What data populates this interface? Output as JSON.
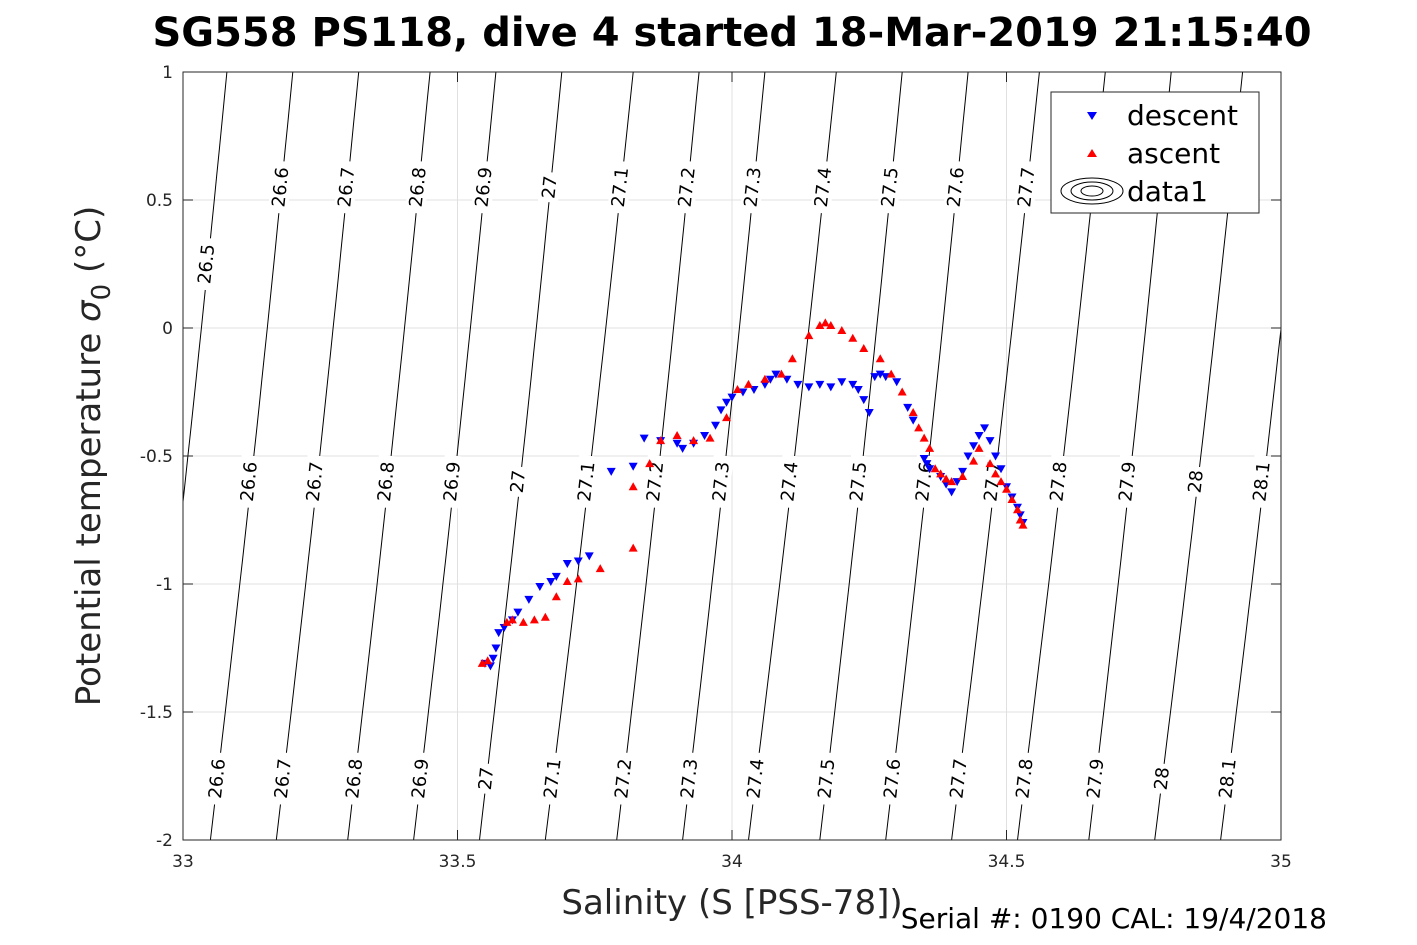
{
  "chart_data": {
    "type": "scatter",
    "title": "SG558 PS118, dive 4 started 18-Mar-2019 21:15:40",
    "xlabel": "Salinity (S [PSS-78])",
    "ylabel_main": "Potential temperature ",
    "ylabel_sigma": "σ",
    "ylabel_sub": "0",
    "ylabel_unit": " (°C)",
    "xlim": [
      33,
      35
    ],
    "ylim": [
      -2,
      1
    ],
    "xticks": [
      33,
      33.5,
      34,
      34.5,
      35
    ],
    "xtick_labels": [
      "33",
      "33.5",
      "34",
      "34.5",
      "35"
    ],
    "yticks": [
      -2,
      -1.5,
      -1,
      -0.5,
      0,
      0.5,
      1
    ],
    "ytick_labels": [
      "-2",
      "-1.5",
      "-1",
      "-0.5",
      "0",
      "0.5",
      "1"
    ],
    "grid": true,
    "legend_position": "top-right",
    "legend": [
      "descent",
      "ascent",
      "data1"
    ],
    "footer": "Serial #: 0190  CAL: 19/4/2018",
    "colors": {
      "descent": "#0000ff",
      "ascent": "#ff0000",
      "contour": "#000000",
      "grid": "#e0e0e0"
    },
    "density_contours": {
      "lines": [
        {
          "value": 26.5,
          "bottom_s": 32.93,
          "top_s": 33.08
        },
        {
          "value": 26.6,
          "bottom_s": 33.05,
          "top_s": 33.2
        },
        {
          "value": 26.7,
          "bottom_s": 33.17,
          "top_s": 33.32
        },
        {
          "value": 26.8,
          "bottom_s": 33.3,
          "top_s": 33.45
        },
        {
          "value": 26.9,
          "bottom_s": 33.42,
          "top_s": 33.57
        },
        {
          "value": 27,
          "bottom_s": 33.54,
          "top_s": 33.69
        },
        {
          "value": 27.1,
          "bottom_s": 33.66,
          "top_s": 33.82
        },
        {
          "value": 27.2,
          "bottom_s": 33.79,
          "top_s": 33.94
        },
        {
          "value": 27.3,
          "bottom_s": 33.91,
          "top_s": 34.06
        },
        {
          "value": 27.4,
          "bottom_s": 34.03,
          "top_s": 34.19
        },
        {
          "value": 27.5,
          "bottom_s": 34.16,
          "top_s": 34.31
        },
        {
          "value": 27.6,
          "bottom_s": 34.28,
          "top_s": 34.43
        },
        {
          "value": 27.7,
          "bottom_s": 34.4,
          "top_s": 34.56
        },
        {
          "value": 27.8,
          "bottom_s": 34.52,
          "top_s": 34.68
        },
        {
          "value": 27.9,
          "bottom_s": 34.65,
          "top_s": 34.8
        },
        {
          "value": 28,
          "bottom_s": 34.77,
          "top_s": 34.93
        },
        {
          "value": 28.1,
          "bottom_s": 34.89,
          "top_s": 35.05
        }
      ],
      "label_rows": [
        {
          "t": 0.55,
          "labels": [
            "26.6",
            "26.7",
            "26.8",
            "26.9",
            "27",
            "27.1",
            "27.2",
            "27.3",
            "27.4",
            "27.5",
            "27.6",
            "27.7"
          ]
        },
        {
          "t": 0.25,
          "labels": [
            "26.5"
          ]
        },
        {
          "t": -0.6,
          "labels": [
            "26.6",
            "26.7",
            "26.8",
            "26.9",
            "27",
            "27.1",
            "27.2",
            "27.3",
            "27.4",
            "27.5",
            "27.6",
            "27.7",
            "27.8",
            "27.9",
            "28",
            "28.1"
          ]
        },
        {
          "t": -1.76,
          "labels": [
            "26.6",
            "26.7",
            "26.8",
            "26.9",
            "27",
            "27.1",
            "27.2",
            "27.3",
            "27.4",
            "27.5",
            "27.6",
            "27.7",
            "27.8",
            "27.9",
            "28",
            "28.1"
          ]
        }
      ]
    },
    "series": [
      {
        "name": "descent",
        "marker": "triangle-down",
        "points": [
          [
            33.55,
            -1.31
          ],
          [
            33.56,
            -1.32
          ],
          [
            33.565,
            -1.29
          ],
          [
            33.57,
            -1.25
          ],
          [
            33.575,
            -1.19
          ],
          [
            33.585,
            -1.17
          ],
          [
            33.6,
            -1.14
          ],
          [
            33.61,
            -1.11
          ],
          [
            33.63,
            -1.06
          ],
          [
            33.65,
            -1.01
          ],
          [
            33.67,
            -0.99
          ],
          [
            33.68,
            -0.97
          ],
          [
            33.7,
            -0.92
          ],
          [
            33.72,
            -0.91
          ],
          [
            33.74,
            -0.89
          ],
          [
            33.78,
            -0.56
          ],
          [
            33.82,
            -0.54
          ],
          [
            33.84,
            -0.43
          ],
          [
            33.87,
            -0.44
          ],
          [
            33.9,
            -0.45
          ],
          [
            33.91,
            -0.47
          ],
          [
            33.93,
            -0.45
          ],
          [
            33.95,
            -0.42
          ],
          [
            33.97,
            -0.38
          ],
          [
            33.98,
            -0.32
          ],
          [
            33.99,
            -0.29
          ],
          [
            34.0,
            -0.27
          ],
          [
            34.02,
            -0.25
          ],
          [
            34.04,
            -0.24
          ],
          [
            34.06,
            -0.22
          ],
          [
            34.07,
            -0.2
          ],
          [
            34.08,
            -0.18
          ],
          [
            34.1,
            -0.2
          ],
          [
            34.12,
            -0.22
          ],
          [
            34.14,
            -0.23
          ],
          [
            34.16,
            -0.22
          ],
          [
            34.18,
            -0.23
          ],
          [
            34.2,
            -0.21
          ],
          [
            34.22,
            -0.22
          ],
          [
            34.23,
            -0.24
          ],
          [
            34.24,
            -0.28
          ],
          [
            34.25,
            -0.33
          ],
          [
            34.26,
            -0.19
          ],
          [
            34.27,
            -0.18
          ],
          [
            34.28,
            -0.19
          ],
          [
            34.3,
            -0.21
          ],
          [
            34.32,
            -0.31
          ],
          [
            34.33,
            -0.36
          ],
          [
            34.35,
            -0.51
          ],
          [
            34.355,
            -0.53
          ],
          [
            34.36,
            -0.55
          ],
          [
            34.38,
            -0.58
          ],
          [
            34.39,
            -0.61
          ],
          [
            34.4,
            -0.64
          ],
          [
            34.41,
            -0.6
          ],
          [
            34.42,
            -0.56
          ],
          [
            34.43,
            -0.5
          ],
          [
            34.44,
            -0.46
          ],
          [
            34.45,
            -0.42
          ],
          [
            34.46,
            -0.39
          ],
          [
            34.47,
            -0.44
          ],
          [
            34.48,
            -0.5
          ],
          [
            34.49,
            -0.55
          ],
          [
            34.5,
            -0.62
          ],
          [
            34.51,
            -0.66
          ],
          [
            34.52,
            -0.7
          ],
          [
            34.525,
            -0.73
          ],
          [
            34.53,
            -0.76
          ]
        ]
      },
      {
        "name": "ascent",
        "marker": "triangle-up",
        "points": [
          [
            33.545,
            -1.31
          ],
          [
            33.555,
            -1.3
          ],
          [
            33.59,
            -1.15
          ],
          [
            33.6,
            -1.14
          ],
          [
            33.62,
            -1.15
          ],
          [
            33.64,
            -1.14
          ],
          [
            33.66,
            -1.13
          ],
          [
            33.68,
            -1.05
          ],
          [
            33.7,
            -0.99
          ],
          [
            33.72,
            -0.98
          ],
          [
            33.76,
            -0.94
          ],
          [
            33.82,
            -0.86
          ],
          [
            33.82,
            -0.62
          ],
          [
            33.85,
            -0.53
          ],
          [
            33.87,
            -0.44
          ],
          [
            33.9,
            -0.42
          ],
          [
            33.93,
            -0.44
          ],
          [
            33.96,
            -0.43
          ],
          [
            33.99,
            -0.35
          ],
          [
            34.01,
            -0.24
          ],
          [
            34.03,
            -0.22
          ],
          [
            34.06,
            -0.2
          ],
          [
            34.09,
            -0.18
          ],
          [
            34.11,
            -0.12
          ],
          [
            34.14,
            -0.03
          ],
          [
            34.16,
            0.01
          ],
          [
            34.17,
            0.02
          ],
          [
            34.18,
            0.01
          ],
          [
            34.2,
            -0.01
          ],
          [
            34.22,
            -0.04
          ],
          [
            34.24,
            -0.08
          ],
          [
            34.27,
            -0.12
          ],
          [
            34.29,
            -0.18
          ],
          [
            34.31,
            -0.25
          ],
          [
            34.33,
            -0.33
          ],
          [
            34.34,
            -0.39
          ],
          [
            34.35,
            -0.43
          ],
          [
            34.36,
            -0.47
          ],
          [
            34.37,
            -0.55
          ],
          [
            34.38,
            -0.57
          ],
          [
            34.39,
            -0.59
          ],
          [
            34.4,
            -0.6
          ],
          [
            34.42,
            -0.58
          ],
          [
            34.44,
            -0.52
          ],
          [
            34.45,
            -0.47
          ],
          [
            34.47,
            -0.53
          ],
          [
            34.48,
            -0.57
          ],
          [
            34.49,
            -0.6
          ],
          [
            34.5,
            -0.63
          ],
          [
            34.51,
            -0.67
          ],
          [
            34.52,
            -0.71
          ],
          [
            34.525,
            -0.75
          ],
          [
            34.53,
            -0.77
          ]
        ]
      }
    ]
  }
}
